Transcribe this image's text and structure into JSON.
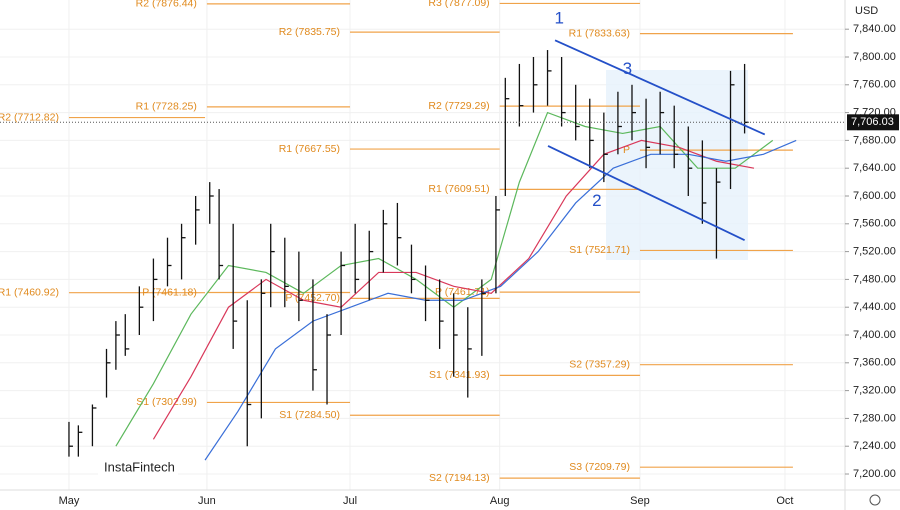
{
  "chart_data": {
    "type": "ohlc",
    "currency": "USD",
    "logo": "InstaFintech",
    "xlim": [
      -14.7,
      165.4
    ],
    "ylim": [
      7177,
      7882
    ],
    "grid": true,
    "xticks": [
      {
        "value": 0,
        "label": "May"
      },
      {
        "value": 29.4,
        "label": "Jun"
      },
      {
        "value": 59.9,
        "label": "Jul"
      },
      {
        "value": 91.8,
        "label": "Aug"
      },
      {
        "value": 121.7,
        "label": "Sep"
      },
      {
        "value": 152.6,
        "label": "Oct"
      }
    ],
    "yticks": [
      {
        "value": 7200,
        "label": "7,200.00"
      },
      {
        "value": 7240,
        "label": "7,240.00"
      },
      {
        "value": 7280,
        "label": "7,280.00"
      },
      {
        "value": 7320,
        "label": "7,320.00"
      },
      {
        "value": 7360,
        "label": "7,360.00"
      },
      {
        "value": 7400,
        "label": "7,400.00"
      },
      {
        "value": 7440,
        "label": "7,440.00"
      },
      {
        "value": 7480,
        "label": "7,480.00"
      },
      {
        "value": 7520,
        "label": "7,520.00"
      },
      {
        "value": 7560,
        "label": "7,560.00"
      },
      {
        "value": 7600,
        "label": "7,600.00"
      },
      {
        "value": 7640,
        "label": "7,640.00"
      },
      {
        "value": 7680,
        "label": "7,680.00"
      },
      {
        "value": 7720,
        "label": "7,720.00"
      },
      {
        "value": 7760,
        "label": "7,760.00"
      },
      {
        "value": 7800,
        "label": "7,800.00"
      },
      {
        "value": 7840,
        "label": "7,840.00"
      }
    ],
    "last_price": {
      "value": 7706.03,
      "label": "7,706.03"
    },
    "bars": {
      "color": "#111111",
      "x": [
        0,
        2,
        5,
        8,
        10,
        12,
        15,
        18,
        21,
        24,
        27,
        30,
        32,
        35,
        38,
        41,
        43,
        46,
        49,
        52,
        55,
        58,
        61,
        64,
        67,
        70,
        73,
        76,
        79,
        82,
        85,
        88,
        91,
        93,
        96,
        99,
        102,
        105,
        108,
        111,
        114,
        117,
        120,
        123,
        126,
        129,
        132,
        135,
        138,
        141,
        144
      ],
      "high": [
        7275,
        7270,
        7300,
        7380,
        7420,
        7430,
        7470,
        7510,
        7540,
        7560,
        7600,
        7620,
        7610,
        7560,
        7450,
        7480,
        7560,
        7540,
        7520,
        7480,
        7430,
        7520,
        7560,
        7550,
        7580,
        7590,
        7530,
        7500,
        7480,
        7460,
        7440,
        7480,
        7600,
        7770,
        7790,
        7800,
        7810,
        7800,
        7760,
        7740,
        7720,
        7750,
        7760,
        7740,
        7750,
        7730,
        7700,
        7680,
        7640,
        7780,
        7790
      ],
      "low": [
        7225,
        7225,
        7240,
        7310,
        7350,
        7370,
        7400,
        7420,
        7470,
        7480,
        7530,
        7560,
        7480,
        7380,
        7240,
        7280,
        7440,
        7440,
        7420,
        7320,
        7300,
        7400,
        7460,
        7450,
        7490,
        7500,
        7460,
        7420,
        7380,
        7340,
        7310,
        7370,
        7460,
        7600,
        7700,
        7720,
        7730,
        7700,
        7680,
        7640,
        7620,
        7660,
        7680,
        7640,
        7660,
        7640,
        7600,
        7560,
        7510,
        7610,
        7690
      ],
      "close": [
        7240,
        7260,
        7295,
        7360,
        7400,
        7380,
        7440,
        7480,
        7500,
        7540,
        7580,
        7600,
        7500,
        7420,
        7300,
        7460,
        7520,
        7470,
        7450,
        7350,
        7400,
        7500,
        7480,
        7520,
        7560,
        7540,
        7480,
        7450,
        7420,
        7400,
        7380,
        7460,
        7580,
        7740,
        7730,
        7760,
        7780,
        7720,
        7700,
        7680,
        7660,
        7700,
        7720,
        7670,
        7720,
        7660,
        7640,
        7590,
        7620,
        7760,
        7706
      ]
    },
    "moving_averages": [
      {
        "color": "#5cb85c",
        "x": [
          10,
          18,
          26,
          34,
          42,
          50,
          58,
          66,
          74,
          82,
          90,
          96,
          102,
          110,
          118,
          126,
          134,
          142,
          150
        ],
        "values": [
          7240,
          7330,
          7430,
          7500,
          7490,
          7460,
          7500,
          7510,
          7480,
          7440,
          7480,
          7620,
          7720,
          7700,
          7690,
          7700,
          7640,
          7640,
          7680
        ]
      },
      {
        "color": "#d9385a",
        "x": [
          18,
          26,
          34,
          42,
          50,
          58,
          66,
          74,
          82,
          90,
          98,
          106,
          114,
          122,
          130,
          138,
          146
        ],
        "values": [
          7250,
          7340,
          7440,
          7480,
          7450,
          7440,
          7490,
          7490,
          7470,
          7460,
          7510,
          7600,
          7660,
          7680,
          7670,
          7650,
          7640
        ]
      },
      {
        "color": "#3a6fd8",
        "x": [
          29,
          36,
          44,
          52,
          60,
          68,
          76,
          84,
          92,
          100,
          108,
          116,
          124,
          132,
          140,
          148,
          155
        ],
        "values": [
          7220,
          7290,
          7380,
          7420,
          7440,
          7460,
          7450,
          7450,
          7470,
          7520,
          7590,
          7640,
          7660,
          7660,
          7650,
          7660,
          7680
        ]
      }
    ],
    "pivots": [
      {
        "label": "R2 (7712.82)",
        "value": 7712.82,
        "x": [
          0,
          29
        ]
      },
      {
        "label": "R1 (7460.92)",
        "value": 7460.92,
        "x": [
          0,
          29
        ]
      },
      {
        "label": "R2 (7876.44)",
        "value": 7876.44,
        "x": [
          29.4,
          59.9
        ]
      },
      {
        "label": "R1 (7728.25)",
        "value": 7728.25,
        "x": [
          29.4,
          59.9
        ]
      },
      {
        "label": "P (7461.18)",
        "value": 7461.18,
        "x": [
          29.4,
          59.9
        ]
      },
      {
        "label": "S1 (7302.99)",
        "value": 7302.99,
        "x": [
          29.4,
          59.9
        ]
      },
      {
        "label": "R2 (7835.75)",
        "value": 7835.75,
        "x": [
          59.9,
          91.8
        ]
      },
      {
        "label": "R1 (7667.55)",
        "value": 7667.55,
        "x": [
          59.9,
          91.8
        ]
      },
      {
        "label": "P (7452.70)",
        "value": 7452.7,
        "x": [
          59.9,
          91.8
        ]
      },
      {
        "label": "S1 (7284.50)",
        "value": 7284.5,
        "x": [
          59.9,
          91.8
        ]
      },
      {
        "label": "R3 (7877.09)",
        "value": 7877.09,
        "x": [
          91.8,
          121.7
        ]
      },
      {
        "label": "R2 (7729.29)",
        "value": 7729.29,
        "x": [
          91.8,
          121.7
        ]
      },
      {
        "label": "R1 (7609.51)",
        "value": 7609.51,
        "x": [
          91.8,
          121.7
        ]
      },
      {
        "label": "P (7461.71)",
        "value": 7461.71,
        "x": [
          91.8,
          121.7
        ]
      },
      {
        "label": "S1 (7341.93)",
        "value": 7341.93,
        "x": [
          91.8,
          121.7
        ]
      },
      {
        "label": "S2 (7194.13)",
        "value": 7194.13,
        "x": [
          91.8,
          121.7
        ]
      },
      {
        "label": "R1 (7833.63)",
        "value": 7833.63,
        "x": [
          121.7,
          154.3
        ]
      },
      {
        "label": "P",
        "value": 7666,
        "x": [
          121.7,
          154.3
        ]
      },
      {
        "label": "S1 (7521.71)",
        "value": 7521.71,
        "x": [
          121.7,
          154.3
        ]
      },
      {
        "label": "S2 (7357.29)",
        "value": 7357.29,
        "x": [
          121.7,
          154.3
        ]
      },
      {
        "label": "S3 (7209.79)",
        "value": 7209.79,
        "x": [
          121.7,
          154.3
        ]
      }
    ],
    "channel_lines": [
      {
        "x": [
          103.6,
          148.3
        ],
        "values": [
          7824,
          7688.5
        ]
      },
      {
        "x": [
          102.1,
          144.0
        ],
        "values": [
          7672,
          7536.5
        ]
      }
    ],
    "annotations": [
      {
        "text": "1",
        "x": 104.5,
        "y": 7855
      },
      {
        "text": "3",
        "x": 119,
        "y": 7782
      },
      {
        "text": "2",
        "x": 112.5,
        "y": 7592
      }
    ]
  }
}
